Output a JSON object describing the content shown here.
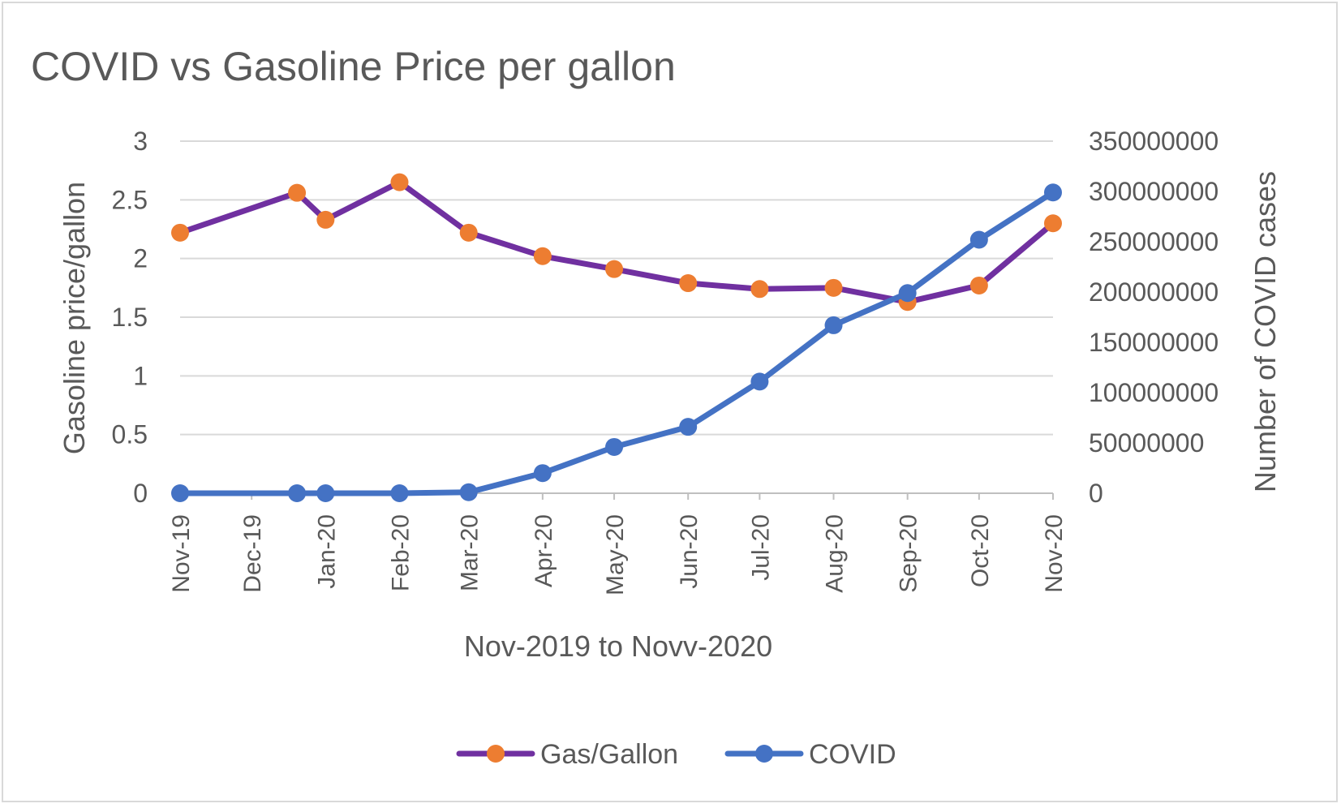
{
  "chart_data": {
    "type": "line",
    "title": "COVID vs Gasoline Price per gallon",
    "xlabel": "Nov-2019 to Novv-2020",
    "ylabel_left": "Gasoline  price/gallon",
    "ylabel_right": "Number of COVID cases",
    "x_ticks": [
      {
        "date": "2019-11-01",
        "label": "Nov-19"
      },
      {
        "date": "2019-12-01",
        "label": "Dec-19"
      },
      {
        "date": "2020-01-01",
        "label": "Jan-20"
      },
      {
        "date": "2020-02-01",
        "label": "Feb-20"
      },
      {
        "date": "2020-03-01",
        "label": "Mar-20"
      },
      {
        "date": "2020-04-01",
        "label": "Apr-20"
      },
      {
        "date": "2020-05-01",
        "label": "May-20"
      },
      {
        "date": "2020-06-01",
        "label": "Jun-20"
      },
      {
        "date": "2020-07-01",
        "label": "Jul-20"
      },
      {
        "date": "2020-08-01",
        "label": "Aug-20"
      },
      {
        "date": "2020-09-01",
        "label": "Sep-20"
      },
      {
        "date": "2020-10-01",
        "label": "Oct-20"
      },
      {
        "date": "2020-11-01",
        "label": "Nov-20"
      }
    ],
    "xlim": [
      "2019-11-01",
      "2020-11-01"
    ],
    "y_left_ticks": [
      "0",
      "0.5",
      "1",
      "1.5",
      "2",
      "2.5",
      "3"
    ],
    "ylim_left": [
      0,
      3
    ],
    "y_right_ticks": [
      "0",
      "50000000",
      "100000000",
      "150000000",
      "200000000",
      "250000000",
      "300000000",
      "350000000"
    ],
    "ylim_right": [
      0,
      350000000
    ],
    "grid": true,
    "legend_position": "bottom",
    "series": [
      {
        "name": "Gas/Gallon",
        "axis": "left",
        "line_color": "#7030a0",
        "marker_color": "#ed7d31",
        "points": [
          {
            "x": "2019-11-01",
            "y": 2.22
          },
          {
            "x": "2019-12-20",
            "y": 2.56
          },
          {
            "x": "2020-01-01",
            "y": 2.33
          },
          {
            "x": "2020-02-01",
            "y": 2.65
          },
          {
            "x": "2020-03-01",
            "y": 2.22
          },
          {
            "x": "2020-04-01",
            "y": 2.02
          },
          {
            "x": "2020-05-01",
            "y": 1.91
          },
          {
            "x": "2020-06-01",
            "y": 1.79
          },
          {
            "x": "2020-07-01",
            "y": 1.74
          },
          {
            "x": "2020-08-01",
            "y": 1.75
          },
          {
            "x": "2020-09-01",
            "y": 1.63
          },
          {
            "x": "2020-10-01",
            "y": 1.77
          },
          {
            "x": "2020-11-01",
            "y": 2.3
          }
        ]
      },
      {
        "name": "COVID",
        "axis": "right",
        "line_color": "#4472c4",
        "marker_color": "#4472c4",
        "points": [
          {
            "x": "2019-11-01",
            "y": 0
          },
          {
            "x": "2019-12-20",
            "y": 0
          },
          {
            "x": "2020-01-01",
            "y": 0
          },
          {
            "x": "2020-02-01",
            "y": 0
          },
          {
            "x": "2020-03-01",
            "y": 1000000
          },
          {
            "x": "2020-04-01",
            "y": 20000000
          },
          {
            "x": "2020-05-01",
            "y": 46000000
          },
          {
            "x": "2020-06-01",
            "y": 66000000
          },
          {
            "x": "2020-07-01",
            "y": 111000000
          },
          {
            "x": "2020-08-01",
            "y": 167000000
          },
          {
            "x": "2020-09-01",
            "y": 199000000
          },
          {
            "x": "2020-10-01",
            "y": 252000000
          },
          {
            "x": "2020-11-01",
            "y": 299000000
          }
        ]
      }
    ]
  }
}
